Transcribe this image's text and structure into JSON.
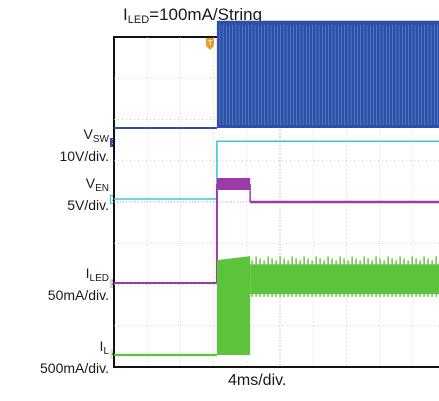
{
  "title": {
    "base": "I",
    "sub": "LED",
    "rest": "=100mA/String"
  },
  "x_label": "4ms/div.",
  "channels": [
    {
      "name_base": "V",
      "name_sub": "SW",
      "scale": "10V/div.",
      "marker": "1",
      "color": "#2c4fa8"
    },
    {
      "name_base": "V",
      "name_sub": "EN",
      "scale": "5V/div.",
      "marker": "2",
      "color": "#3ec8d6"
    },
    {
      "name_base": "I",
      "name_sub": "LED",
      "scale": "50mA/div.",
      "marker": "3",
      "color": "#9c3aa8"
    },
    {
      "name_base": "I",
      "name_sub": "L",
      "scale": "500mA/div.",
      "marker": "4",
      "color": "#5cc43a"
    }
  ],
  "trigger_marker": "T",
  "chart_data": {
    "type": "line",
    "title": "ILED=100mA/String",
    "xlabel": "4ms/div.",
    "grid": true,
    "divisions": {
      "x": 10,
      "y": 8
    },
    "time_units": "div",
    "series": [
      {
        "name": "VSW",
        "description": "Low before enable, then switching bursts at full amplitude",
        "low_div": 0,
        "high_div": 2.6,
        "switching_start_div": 3.1
      },
      {
        "name": "VEN",
        "step_at_div": 3.1,
        "low_div": 0,
        "high_div": 1.4
      },
      {
        "name": "ILED",
        "step_at_div": 3.1,
        "low_div": 0,
        "high_div": 2.4,
        "settle_at_div": 4.1
      },
      {
        "name": "IL",
        "step_at_div": 3.1,
        "low_div": 0,
        "peak_div": 2.3,
        "steady_div": 2.2,
        "settle_at_div": 4.1
      }
    ]
  }
}
